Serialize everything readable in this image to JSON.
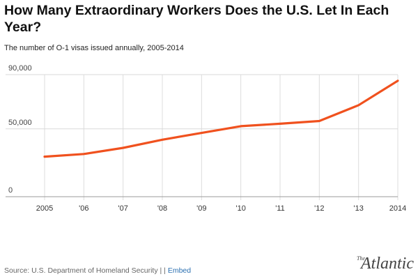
{
  "header": {
    "title": "How Many Extraordinary Workers Does the U.S. Let In Each Year?",
    "subtitle": "The number of O-1 visas issued annually, 2005-2014"
  },
  "footer": {
    "source": "Source: U.S. Department of Homeland Security",
    "separator": "| |",
    "embed_label": "Embed",
    "logo_small": "The",
    "logo_word": "Atlantic"
  },
  "colors": {
    "line": "#f0511e",
    "embed": "#2a6fb0"
  },
  "chart_data": {
    "type": "line",
    "title": "How Many Extraordinary Workers Does the U.S. Let In Each Year?",
    "subtitle": "The number of O-1 visas issued annually, 2005-2014",
    "xlabel": "",
    "ylabel": "",
    "x": [
      "2005",
      "'06",
      "'07",
      "'08",
      "'09",
      "'10",
      "'11",
      "'12",
      "'13",
      "2014"
    ],
    "ylim": [
      0,
      90000
    ],
    "yticks": [
      0,
      50000,
      90000
    ],
    "ytick_labels": [
      "0",
      "50,000",
      "90,000"
    ],
    "grid": true,
    "series": [
      {
        "values": [
          29500,
          31500,
          36000,
          42000,
          47000,
          52000,
          53800,
          55800,
          67500,
          85500
        ]
      }
    ]
  }
}
